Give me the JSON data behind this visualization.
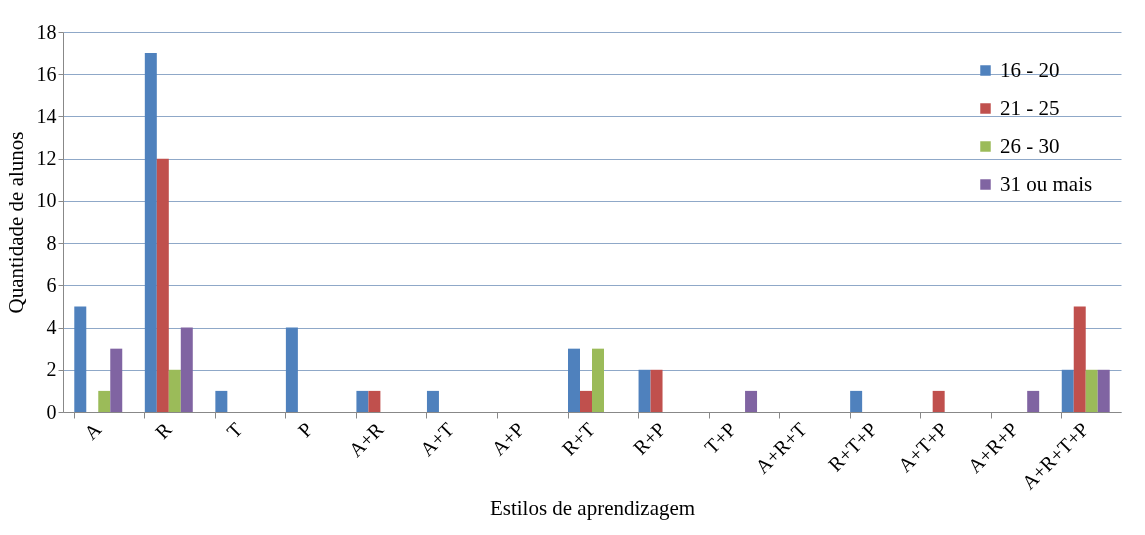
{
  "chart_data": {
    "type": "bar",
    "xlabel": "Estilos de aprendizagem",
    "ylabel": "Quantidade de alunos",
    "categories": [
      "A",
      "R",
      "T",
      "P",
      "A+R",
      "A+T",
      "A+P",
      "R+T",
      "R+P",
      "T+P",
      "A+R+T",
      "R+T+P",
      "A+T+P",
      "A+R+P",
      "A+R+T+P"
    ],
    "series": [
      {
        "name": "16 - 20",
        "color": "#4f81bd",
        "values": [
          5,
          17,
          1,
          4,
          1,
          1,
          0,
          3,
          2,
          0,
          0,
          1,
          0,
          0,
          2
        ]
      },
      {
        "name": "21 - 25",
        "color": "#c0504d",
        "values": [
          0,
          12,
          0,
          0,
          1,
          0,
          0,
          1,
          2,
          0,
          0,
          0,
          1,
          0,
          5
        ]
      },
      {
        "name": "26 - 30",
        "color": "#9bbb59",
        "values": [
          1,
          2,
          0,
          0,
          0,
          0,
          0,
          3,
          0,
          0,
          0,
          0,
          0,
          0,
          2
        ]
      },
      {
        "name": "31 ou mais",
        "color": "#8064a2",
        "values": [
          3,
          4,
          0,
          0,
          0,
          0,
          0,
          0,
          0,
          1,
          0,
          0,
          0,
          1,
          2
        ]
      }
    ],
    "ylim": [
      0,
      18
    ],
    "yticks": [
      0,
      2,
      4,
      6,
      8,
      10,
      12,
      14,
      16,
      18
    ],
    "grid": "y",
    "legend": "top right"
  }
}
